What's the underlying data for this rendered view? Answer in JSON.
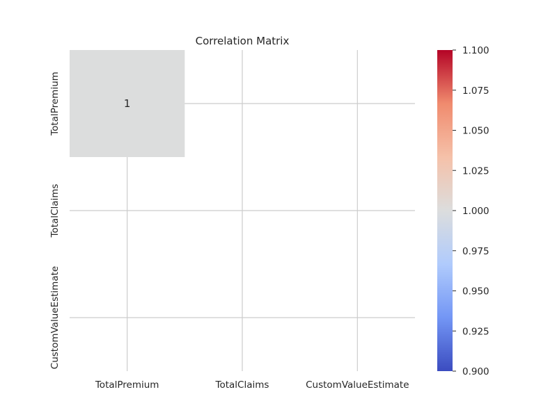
{
  "chart_data": {
    "type": "heatmap",
    "title": "Correlation Matrix",
    "xlabel": "",
    "ylabel": "",
    "x_categories": [
      "TotalPremium",
      "TotalClaims",
      "CustomValueEstimate"
    ],
    "y_categories": [
      "TotalPremium",
      "TotalClaims",
      "CustomValueEstimate"
    ],
    "values": [
      [
        1,
        null,
        null
      ],
      [
        null,
        null,
        null
      ],
      [
        null,
        null,
        null
      ]
    ],
    "annotations": [
      [
        "1",
        "",
        ""
      ],
      [
        "",
        "",
        ""
      ],
      [
        "",
        "",
        ""
      ]
    ],
    "colormap": "coolwarm",
    "colorbar": {
      "vmin": 0.9,
      "vmax": 1.1,
      "ticks": [
        "0.900",
        "0.925",
        "0.950",
        "0.975",
        "1.000",
        "1.025",
        "1.050",
        "1.075",
        "1.100"
      ]
    },
    "grid": true,
    "colors": {
      "gridline": "#cccccc",
      "cmap_stops": [
        "#3b4cc0",
        "#7396f5",
        "#b0cbfc",
        "#dcdddd",
        "#f5c1a9",
        "#f08b6e",
        "#b40426"
      ]
    }
  }
}
